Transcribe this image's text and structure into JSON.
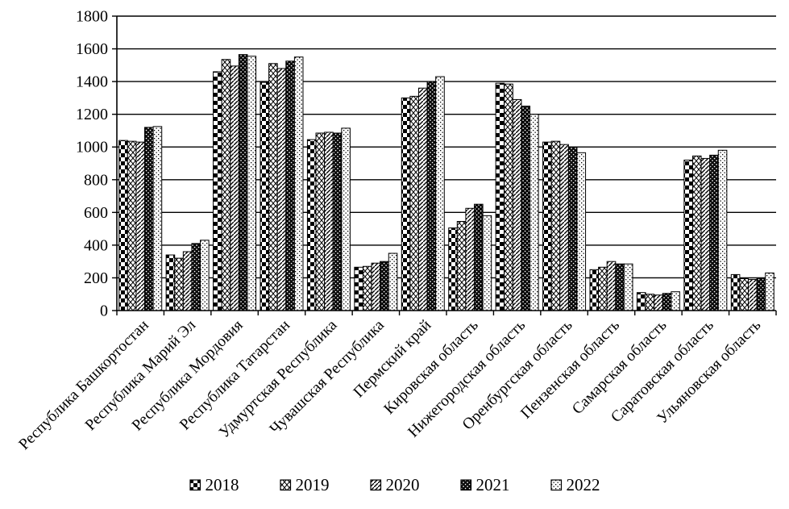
{
  "chart_data": {
    "type": "bar",
    "title": "",
    "xlabel": "",
    "ylabel": "",
    "ylim": [
      0,
      1800
    ],
    "ytick_step": 200,
    "y_tick_labels": [
      "0",
      "200",
      "400",
      "600",
      "800",
      "1000",
      "1200",
      "1400",
      "1600",
      "1800"
    ],
    "grid": true,
    "legend_position": "bottom",
    "axis_color": "#000000",
    "background_color": "#ffffff",
    "categories": [
      "Республика Башкортостан",
      "Республика Марий Эл",
      "Республика Мордовия",
      "Республика Татарстан",
      "Удмуртская Республика",
      "Чувашская Республика",
      "Пермский край",
      "Кировская область",
      "Нижегородская область",
      "Оренбургская область",
      "Пензенская область",
      "Самарская область",
      "Саратовская область",
      "Ульяновская область"
    ],
    "series": [
      {
        "name": "2018",
        "pattern": "checkerboard-pattern",
        "values": [
          1040,
          340,
          1460,
          1395,
          1045,
          265,
          1300,
          505,
          1390,
          1030,
          250,
          110,
          920,
          220
        ]
      },
      {
        "name": "2019",
        "pattern": "diamond-lattice-pattern",
        "values": [
          1035,
          320,
          1535,
          1510,
          1085,
          270,
          1310,
          545,
          1385,
          1035,
          265,
          100,
          945,
          195
        ]
      },
      {
        "name": "2020",
        "pattern": "diagonal-stripe-pattern",
        "values": [
          1030,
          360,
          1495,
          1480,
          1090,
          290,
          1360,
          625,
          1290,
          1015,
          300,
          95,
          930,
          190
        ]
      },
      {
        "name": "2021",
        "pattern": "black-with-white-dots-pattern",
        "values": [
          1120,
          410,
          1565,
          1525,
          1085,
          300,
          1400,
          650,
          1250,
          1000,
          285,
          105,
          950,
          200
        ]
      },
      {
        "name": "2022",
        "pattern": "white-with-black-dots-pattern",
        "values": [
          1125,
          430,
          1555,
          1550,
          1115,
          350,
          1430,
          580,
          1200,
          965,
          285,
          115,
          980,
          230
        ]
      }
    ]
  }
}
